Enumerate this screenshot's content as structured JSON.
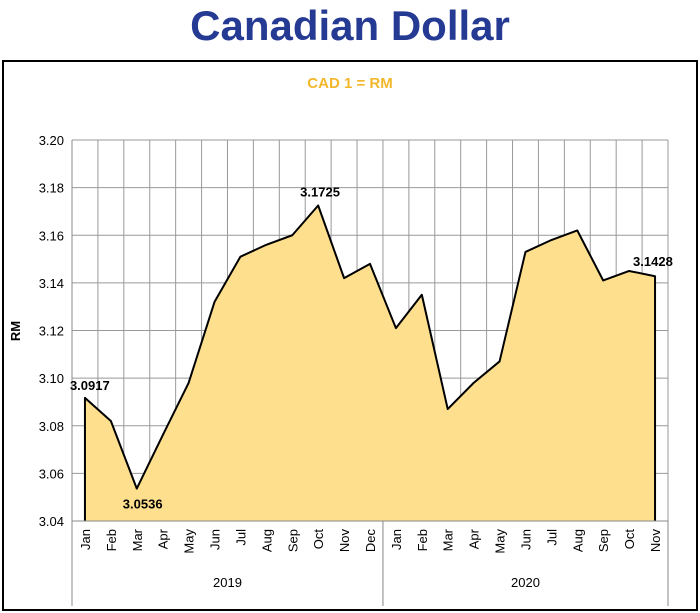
{
  "title": "Canadian Dollar",
  "chart_data": {
    "type": "area",
    "subtitle": "CAD 1 = RM",
    "ylabel": "RM",
    "xlabel": "",
    "ylim": [
      3.04,
      3.2
    ],
    "yticks": [
      "3.04",
      "3.06",
      "3.08",
      "3.10",
      "3.12",
      "3.14",
      "3.16",
      "3.18",
      "3.20"
    ],
    "grid": true,
    "categories": [
      "Jan",
      "Feb",
      "Mar",
      "Apr",
      "May",
      "Jun",
      "Jul",
      "Aug",
      "Sep",
      "Oct",
      "Nov",
      "Dec",
      "Jan",
      "Feb",
      "Mar",
      "Apr",
      "May",
      "Jun",
      "Jul",
      "Aug",
      "Sep",
      "Oct",
      "Nov"
    ],
    "groups": [
      {
        "label": "2019",
        "count": 12
      },
      {
        "label": "2020",
        "count": 11
      }
    ],
    "series": [
      {
        "values": [
          3.0917,
          3.082,
          3.0536,
          3.076,
          3.098,
          3.132,
          3.151,
          3.156,
          3.16,
          3.1725,
          3.142,
          3.148,
          3.121,
          3.135,
          3.087,
          3.098,
          3.107,
          3.153,
          3.158,
          3.162,
          3.141,
          3.145,
          3.1428
        ]
      }
    ],
    "data_labels": [
      {
        "index": 0,
        "text": "3.0917"
      },
      {
        "index": 2,
        "text": "3.0536"
      },
      {
        "index": 9,
        "text": "3.1725"
      },
      {
        "index": 22,
        "text": "3.1428"
      }
    ],
    "colors": {
      "fill": "#fddf8e",
      "line": "#000000",
      "subtitle": "#f2b72b",
      "title": "#253a93",
      "grid": "#999999"
    }
  }
}
